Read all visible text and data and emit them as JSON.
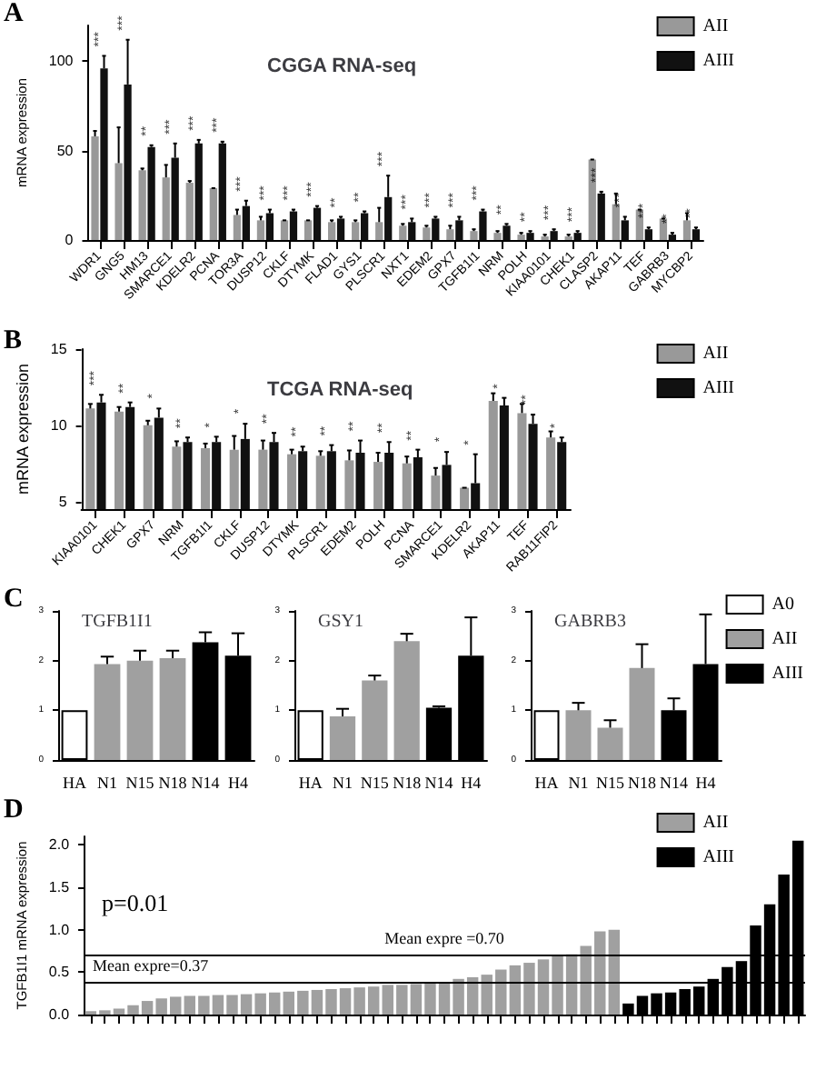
{
  "chart_data": [
    {
      "type": "bar",
      "title": "CGGA RNA-seq",
      "ylabel": "mRNA expression",
      "categories": [
        "WDR1",
        "GNG5",
        "HM13",
        "SMARCE1",
        "KDELR2",
        "PCNA",
        "TOR3A",
        "DUSP12",
        "CKLF",
        "DTYMK",
        "FLAD1",
        "GYS1",
        "PLSCR1",
        "NXT1",
        "EDEM2",
        "GPX7",
        "TGFB1I1",
        "NRM",
        "POLH",
        "KIAA0101",
        "CHEK1",
        "CLASP2",
        "AKAP11",
        "TEF",
        "GABRB3",
        "MYCBP2"
      ],
      "series": [
        {
          "name": "AII",
          "color": "#999999",
          "values": [
            58,
            43,
            39,
            35,
            32,
            29,
            14,
            11,
            11,
            11,
            10,
            10,
            10,
            8,
            7,
            6,
            5,
            4,
            3,
            2,
            2,
            45,
            20,
            17,
            12,
            11
          ],
          "errors": [
            3,
            20,
            1,
            7,
            1,
            0,
            3,
            2,
            0,
            0,
            1,
            1,
            8,
            1,
            1,
            2,
            1,
            1,
            1,
            1,
            1,
            0,
            6,
            0,
            0,
            4
          ]
        },
        {
          "name": "AIII",
          "color": "#111111",
          "values": [
            96,
            87,
            52,
            46,
            54,
            54,
            19,
            15,
            16,
            18,
            12,
            15,
            24,
            10,
            12,
            11,
            16,
            8,
            4,
            5,
            4,
            26,
            11,
            6,
            3,
            6
          ],
          "errors": [
            7,
            25,
            1,
            8,
            2,
            1,
            3,
            2,
            1,
            1,
            1,
            1,
            12,
            2,
            1,
            2,
            1,
            1,
            1,
            1,
            1,
            1,
            2,
            1,
            1,
            1
          ]
        }
      ],
      "ylim": [
        0,
        120
      ],
      "yticks": [
        0,
        50,
        100
      ],
      "legend": "top right",
      "annotations": [
        "A",
        {
          "text": "***",
          "x": "WDR1",
          "y": 103
        },
        {
          "text": "***",
          "x": "GNG5",
          "y": 112
        },
        {
          "text": "**",
          "x": "HM13",
          "y": 53
        },
        {
          "text": "***",
          "x": "SMARCE1",
          "y": 54
        },
        {
          "text": "***",
          "x": "KDELR2",
          "y": 56
        },
        {
          "text": "***",
          "x": "PCNA",
          "y": 55
        },
        {
          "text": "***",
          "x": "TOR3A",
          "y": 22
        },
        {
          "text": "***",
          "x": "DUSP12",
          "y": 17
        },
        {
          "text": "***",
          "x": "CKLF",
          "y": 17
        },
        {
          "text": "***",
          "x": "DTYMK",
          "y": 19
        },
        {
          "text": "**",
          "x": "FLAD1",
          "y": 13
        },
        {
          "text": "**",
          "x": "GYS1",
          "y": 16
        },
        {
          "text": "***",
          "x": "PLSCR1",
          "y": 36
        },
        {
          "text": "***",
          "x": "NXT1",
          "y": 12
        },
        {
          "text": "***",
          "x": "EDEM2",
          "y": 13
        },
        {
          "text": "***",
          "x": "GPX7",
          "y": 13
        },
        {
          "text": "***",
          "x": "TGFB1I1",
          "y": 17
        },
        {
          "text": "**",
          "x": "NRM",
          "y": 9
        },
        {
          "text": "**",
          "x": "POLH",
          "y": 5
        },
        {
          "text": "***",
          "x": "KIAA0101",
          "y": 6
        },
        {
          "text": "***",
          "x": "CHEK1",
          "y": 5
        },
        {
          "text": "***",
          "x": "CLASP2",
          "y": 27
        },
        {
          "text": "***",
          "x": "AKAP11",
          "y": 13
        },
        {
          "text": "***",
          "x": "TEF",
          "y": 7
        },
        {
          "text": "**",
          "x": "GABRB3",
          "y": 4
        },
        {
          "text": "**",
          "x": "MYCBP2",
          "y": 7
        }
      ]
    },
    {
      "type": "bar",
      "title": "TCGA RNA-seq",
      "ylabel": "mRNA expression",
      "categories": [
        "KIAA0101",
        "CHEK1",
        "GPX7",
        "NRM",
        "TGFB1I1",
        "CKLF",
        "DUSP12",
        "DTYMK",
        "PLSCR1",
        "EDEM2",
        "POLH",
        "PCNA",
        "SMARCE1",
        "KDELR2",
        "AKAP11",
        "TEF",
        "RAB11FIP2"
      ],
      "series": [
        {
          "name": "AII",
          "color": "#999999",
          "values": [
            11.1,
            10.9,
            10.0,
            8.6,
            8.5,
            8.4,
            8.4,
            8.1,
            8.0,
            7.7,
            7.6,
            7.5,
            6.7,
            5.9,
            11.6,
            10.8,
            9.2
          ],
          "errors": [
            0.3,
            0.3,
            0.3,
            0.35,
            0.3,
            0.9,
            0.6,
            0.3,
            0.3,
            0.65,
            0.6,
            0.45,
            0.5,
            0,
            0.5,
            0.6,
            0.4
          ]
        },
        {
          "name": "AIII",
          "color": "#111111",
          "values": [
            11.5,
            11.2,
            10.5,
            8.9,
            8.9,
            9.1,
            8.9,
            8.3,
            8.3,
            8.2,
            8.2,
            7.9,
            7.4,
            6.2,
            11.3,
            10.1,
            8.9
          ],
          "errors": [
            0.5,
            0.3,
            0.6,
            0.3,
            0.35,
            1.0,
            0.6,
            0.3,
            0.4,
            0.8,
            0.7,
            0.5,
            0.85,
            1.9,
            0.5,
            0.6,
            0.3
          ]
        }
      ],
      "ylim": [
        4.5,
        15
      ],
      "yticks": [
        5,
        10,
        15
      ],
      "legend": "top right",
      "annotations": [
        "B",
        {
          "text": "***",
          "x": "KIAA0101",
          "y": 12.0
        },
        {
          "text": "**",
          "x": "CHEK1",
          "y": 11.5
        },
        {
          "text": "*",
          "x": "GPX7",
          "y": 11.15
        },
        {
          "text": "**",
          "x": "NRM",
          "y": 9.2
        },
        {
          "text": "*",
          "x": "TGFB1I1",
          "y": 9.25
        },
        {
          "text": "*",
          "x": "CKLF",
          "y": 10.15
        },
        {
          "text": "**",
          "x": "DUSP12",
          "y": 9.5
        },
        {
          "text": "**",
          "x": "DTYMK",
          "y": 8.65
        },
        {
          "text": "**",
          "x": "PLSCR1",
          "y": 8.7
        },
        {
          "text": "**",
          "x": "EDEM2",
          "y": 9.0
        },
        {
          "text": "**",
          "x": "POLH",
          "y": 8.9
        },
        {
          "text": "**",
          "x": "PCNA",
          "y": 8.4
        },
        {
          "text": "*",
          "x": "SMARCE1",
          "y": 8.3
        },
        {
          "text": "*",
          "x": "KDELR2",
          "y": 8.1
        },
        {
          "text": "*",
          "x": "AKAP11",
          "y": 11.8
        },
        {
          "text": "**",
          "x": "TEF",
          "y": 10.75
        },
        {
          "text": "*",
          "x": "RAB11FIP2",
          "y": 9.2
        }
      ]
    },
    {
      "type": "bar",
      "title": "TGFB1I1",
      "categories": [
        "HA",
        "N1",
        "N15",
        "N18",
        "N14",
        "H4"
      ],
      "series": [
        {
          "color": "#ffffff",
          "values": [
            1.0,
            null,
            null,
            null,
            null,
            null
          ]
        },
        {
          "color": "#a0a0a0",
          "values": [
            null,
            1.93,
            2.0,
            2.05,
            null,
            null
          ],
          "errors": [
            null,
            0.15,
            0.2,
            0.15,
            null,
            null
          ]
        },
        {
          "color": "#000000",
          "values": [
            null,
            null,
            null,
            null,
            2.37,
            2.1
          ],
          "errors": [
            null,
            null,
            null,
            null,
            0.2,
            0.45
          ]
        }
      ],
      "ylim": [
        0,
        3
      ],
      "yticks": [
        0,
        1,
        2,
        3
      ],
      "annotations": [
        "C"
      ]
    },
    {
      "type": "bar",
      "title": "GSY1",
      "categories": [
        "HA",
        "N1",
        "N15",
        "N18",
        "N14",
        "H4"
      ],
      "series": [
        {
          "color": "#ffffff",
          "values": [
            1.0,
            null,
            null,
            null,
            null,
            null
          ]
        },
        {
          "color": "#a0a0a0",
          "values": [
            null,
            0.88,
            1.6,
            2.39,
            null,
            null
          ],
          "errors": [
            null,
            0.15,
            0.1,
            0.15,
            null,
            null
          ]
        },
        {
          "color": "#000000",
          "values": [
            null,
            null,
            null,
            null,
            1.05,
            2.1
          ],
          "errors": [
            null,
            null,
            null,
            null,
            0.03,
            0.77
          ]
        }
      ],
      "ylim": [
        0,
        3
      ],
      "yticks": [
        0,
        1,
        2,
        3
      ]
    },
    {
      "type": "bar",
      "title": "GABRB3",
      "categories": [
        "HA",
        "N1",
        "N15",
        "N18",
        "N14",
        "H4"
      ],
      "series": [
        {
          "name": "A0",
          "color": "#ffffff",
          "values": [
            1.0,
            null,
            null,
            null,
            null,
            null
          ]
        },
        {
          "name": "AII",
          "color": "#a0a0a0",
          "values": [
            null,
            1.0,
            0.65,
            1.85,
            null,
            null
          ],
          "errors": [
            null,
            0.15,
            0.15,
            0.48,
            null,
            null
          ]
        },
        {
          "name": "AIII",
          "color": "#000000",
          "values": [
            null,
            null,
            null,
            null,
            1.0,
            1.93
          ],
          "errors": [
            null,
            null,
            null,
            null,
            0.24,
            1.0
          ]
        }
      ],
      "ylim": [
        0,
        3
      ],
      "yticks": [
        0,
        1,
        2,
        3
      ],
      "legend": "right"
    },
    {
      "type": "bar",
      "ylabel": "TGFB1I1 mRNA expression",
      "categories": [
        null,
        null,
        null,
        null,
        null,
        null,
        null,
        null,
        null,
        null,
        null,
        null,
        null,
        null,
        null,
        null,
        null,
        null,
        null,
        null,
        null,
        null,
        null,
        null,
        null,
        null,
        null,
        null,
        null,
        null,
        null,
        null,
        null,
        null,
        null,
        null,
        null,
        null,
        null,
        null,
        null,
        null,
        null,
        null,
        null,
        null,
        null,
        null,
        null,
        null,
        null
      ],
      "series": [
        {
          "name": "AII",
          "color": "#a0a0a0",
          "values": [
            0.04,
            0.05,
            0.07,
            0.11,
            0.16,
            0.19,
            0.21,
            0.22,
            0.22,
            0.23,
            0.23,
            0.24,
            0.25,
            0.26,
            0.27,
            0.28,
            0.29,
            0.3,
            0.31,
            0.32,
            0.33,
            0.35,
            0.35,
            0.36,
            0.37,
            0.38,
            0.42,
            0.44,
            0.47,
            0.53,
            0.58,
            0.61,
            0.65,
            0.69,
            0.71,
            0.81,
            0.98,
            1.0,
            null,
            null,
            null,
            null,
            null,
            null,
            null,
            null,
            null,
            null,
            null,
            null,
            null
          ]
        },
        {
          "name": "AIII",
          "color": "#000000",
          "values": [
            null,
            null,
            null,
            null,
            null,
            null,
            null,
            null,
            null,
            null,
            null,
            null,
            null,
            null,
            null,
            null,
            null,
            null,
            null,
            null,
            null,
            null,
            null,
            null,
            null,
            null,
            null,
            null,
            null,
            null,
            null,
            null,
            null,
            null,
            null,
            null,
            null,
            null,
            0.13,
            0.22,
            0.25,
            0.26,
            0.3,
            0.33,
            0.42,
            0.56,
            0.63,
            1.05,
            1.3,
            1.65,
            2.05
          ]
        }
      ],
      "ylim": [
        0,
        2.1
      ],
      "yticks": [
        {
          "value": 0,
          "label": "0.0"
        },
        {
          "value": 0.5,
          "label": "0.5"
        },
        {
          "value": 1,
          "label": "1.0"
        },
        {
          "value": 1.5,
          "label": "1.5"
        },
        {
          "value": 2,
          "label": "2.0"
        }
      ],
      "legend": "top right",
      "ref_lines": [
        {
          "axis": "y",
          "value": 0.37,
          "label": "Mean expre=0.37"
        },
        {
          "axis": "y",
          "value": 0.7,
          "label": "Mean expre =0.70"
        }
      ],
      "annotations": [
        "D",
        "p=0.01"
      ]
    }
  ]
}
